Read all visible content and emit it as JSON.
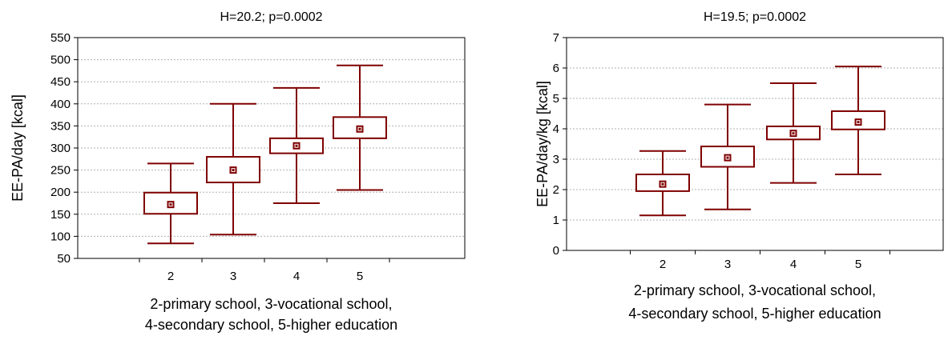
{
  "chart_data": [
    {
      "type": "box",
      "title": "H=20.2; p=0.0002",
      "ylabel": "EE-PA/day [kcal]",
      "xlabel_lines": [
        "2-primary school, 3-vocational school,",
        "4-secondary school, 5-higher education"
      ],
      "categories": [
        "2",
        "3",
        "4",
        "5"
      ],
      "ylim": [
        50,
        550
      ],
      "yticks": [
        50,
        100,
        150,
        200,
        250,
        300,
        350,
        400,
        450,
        500,
        550
      ],
      "grid": true,
      "boxes": [
        {
          "category": "2",
          "whisker_low": 84,
          "q1": 151,
          "median": 172,
          "q3": 199,
          "whisker_high": 265
        },
        {
          "category": "3",
          "whisker_low": 104,
          "q1": 222,
          "median": 250,
          "q3": 280,
          "whisker_high": 400
        },
        {
          "category": "4",
          "whisker_low": 175,
          "q1": 288,
          "median": 305,
          "q3": 322,
          "whisker_high": 436
        },
        {
          "category": "5",
          "whisker_low": 205,
          "q1": 322,
          "median": 343,
          "q3": 370,
          "whisker_high": 487
        }
      ],
      "color": "#7f0000"
    },
    {
      "type": "box",
      "title": "H=19.5; p=0.0002",
      "ylabel": "EE-PA/day/kg [kcal]",
      "xlabel_lines": [
        "2-primary school, 3-vocational school,",
        "4-secondary school, 5-higher education"
      ],
      "categories": [
        "2",
        "3",
        "4",
        "5"
      ],
      "ylim": [
        0,
        7
      ],
      "yticks": [
        0,
        1,
        2,
        3,
        4,
        5,
        6,
        7
      ],
      "grid": true,
      "boxes": [
        {
          "category": "2",
          "whisker_low": 1.15,
          "q1": 1.95,
          "median": 2.18,
          "q3": 2.5,
          "whisker_high": 3.27
        },
        {
          "category": "3",
          "whisker_low": 1.35,
          "q1": 2.75,
          "median": 3.05,
          "q3": 3.42,
          "whisker_high": 4.8
        },
        {
          "category": "4",
          "whisker_low": 2.22,
          "q1": 3.65,
          "median": 3.85,
          "q3": 4.08,
          "whisker_high": 5.5
        },
        {
          "category": "5",
          "whisker_low": 2.5,
          "q1": 3.98,
          "median": 4.22,
          "q3": 4.58,
          "whisker_high": 6.05
        }
      ],
      "color": "#7f0000"
    }
  ]
}
